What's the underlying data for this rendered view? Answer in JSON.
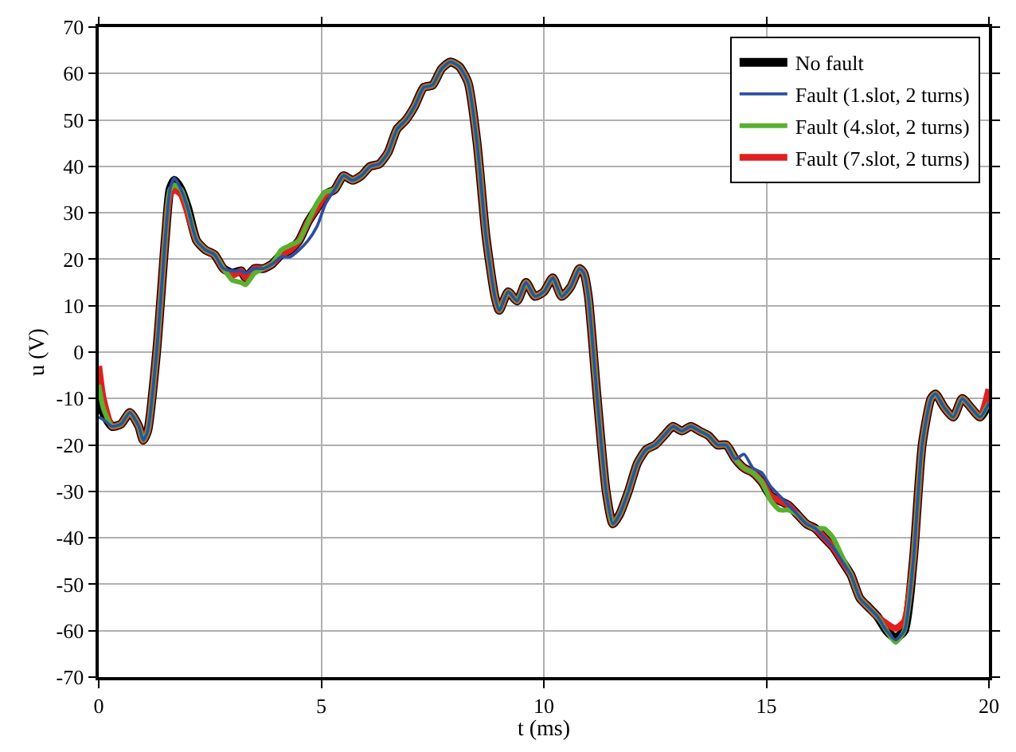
{
  "chart_data": {
    "type": "line",
    "xlabel": "t (ms)",
    "ylabel": "u (V)",
    "x": [
      0,
      0.1,
      0.3,
      0.5,
      0.7,
      0.9,
      1.0,
      1.1,
      1.3,
      1.5,
      1.6,
      1.7,
      1.85,
      2.0,
      2.2,
      2.4,
      2.6,
      2.8,
      3.0,
      3.2,
      3.3,
      3.5,
      3.7,
      3.9,
      4.1,
      4.3,
      4.5,
      4.7,
      4.9,
      5.1,
      5.3,
      5.5,
      5.7,
      5.9,
      6.1,
      6.3,
      6.5,
      6.7,
      6.9,
      7.1,
      7.3,
      7.5,
      7.7,
      7.9,
      8.1,
      8.3,
      8.5,
      8.7,
      8.9,
      9.0,
      9.2,
      9.4,
      9.6,
      9.8,
      10.0,
      10.2,
      10.4,
      10.6,
      10.8,
      10.9,
      11.0,
      11.2,
      11.4,
      11.55,
      11.7,
      11.9,
      12.1,
      12.3,
      12.5,
      12.7,
      12.9,
      13.1,
      13.3,
      13.5,
      13.7,
      13.9,
      14.1,
      14.3,
      14.5,
      14.7,
      14.9,
      15.1,
      15.3,
      15.5,
      15.7,
      15.9,
      16.1,
      16.3,
      16.5,
      16.7,
      16.9,
      17.1,
      17.3,
      17.5,
      17.7,
      17.9,
      18.1,
      18.3,
      18.5,
      18.7,
      18.8,
      19.0,
      19.2,
      19.4,
      19.6,
      19.8,
      20
    ],
    "series": [
      {
        "name": "No fault",
        "color": "#000000",
        "values": [
          -10,
          -13,
          -16,
          -15.5,
          -13,
          -16,
          -19,
          -17,
          0,
          25,
          35,
          37,
          35,
          31,
          24,
          22,
          21,
          18,
          17,
          17.5,
          16,
          18,
          18,
          19,
          21,
          22,
          24,
          28,
          31,
          34,
          35,
          38,
          37,
          38,
          40,
          40.5,
          43,
          48,
          50,
          53,
          57,
          57.5,
          61,
          62.5,
          61.5,
          58,
          45,
          25,
          12,
          9,
          13,
          11,
          15,
          12,
          13,
          16,
          12,
          14,
          18,
          17,
          12,
          -10,
          -30,
          -37,
          -35,
          -30,
          -24,
          -21,
          -20,
          -18,
          -16,
          -17,
          -16,
          -17,
          -18,
          -20,
          -20,
          -23,
          -25,
          -26,
          -28,
          -31,
          -32,
          -33,
          -35,
          -37,
          -38,
          -40,
          -42,
          -45,
          -48,
          -53,
          -55,
          -57,
          -60,
          -61.5,
          -60,
          -45,
          -20,
          -10,
          -9,
          -12,
          -14,
          -10,
          -12,
          -14,
          -11
        ]
      },
      {
        "name": "Fault (1.slot, 2 turns)",
        "color": "#2e4fa0",
        "values": [
          -14,
          -14.5,
          -16,
          -15.5,
          -13,
          -16,
          -19,
          -17,
          0,
          25,
          35,
          37.5,
          35,
          31,
          24,
          22,
          21,
          18,
          17.5,
          17.5,
          17,
          18,
          18,
          19,
          20.5,
          20.5,
          22,
          24,
          27,
          32,
          35,
          38,
          37,
          38,
          40,
          40.5,
          43,
          48,
          50,
          53,
          57,
          57.5,
          61,
          62.5,
          61.5,
          58,
          45,
          25,
          12,
          9,
          13,
          11,
          15,
          12,
          13,
          16,
          12,
          14,
          18,
          17,
          12,
          -10,
          -30,
          -37,
          -35,
          -30,
          -24,
          -21,
          -20,
          -18,
          -16,
          -17,
          -16,
          -17,
          -18,
          -20,
          -20,
          -23,
          -22,
          -25,
          -26,
          -29,
          -31,
          -33,
          -35,
          -37,
          -38,
          -40,
          -42,
          -45,
          -48,
          -53,
          -55,
          -57,
          -60,
          -62,
          -60,
          -45,
          -20,
          -10,
          -9,
          -12,
          -14,
          -10,
          -12,
          -14,
          -11
        ]
      },
      {
        "name": "Fault (4.slot, 2 turns)",
        "color": "#5ab030",
        "values": [
          -7,
          -12,
          -16,
          -15.5,
          -13,
          -16,
          -19,
          -17,
          0,
          25,
          35,
          36,
          35,
          31,
          24,
          22,
          21,
          18,
          15.5,
          15,
          14.5,
          17,
          18,
          19,
          22,
          23,
          24,
          28,
          32,
          34.5,
          35,
          38,
          37,
          38,
          40,
          40.5,
          43,
          48,
          50,
          53,
          57,
          57.5,
          61,
          62.5,
          61.5,
          58,
          45,
          25,
          12,
          9,
          13,
          11,
          15,
          12,
          13,
          16,
          12,
          14,
          18,
          17,
          12,
          -10,
          -30,
          -37,
          -35,
          -30,
          -24,
          -21,
          -20,
          -18,
          -16,
          -17,
          -16,
          -17,
          -18,
          -20,
          -20,
          -23,
          -25,
          -26,
          -28,
          -32,
          -34,
          -34,
          -35,
          -37,
          -38,
          -38,
          -40,
          -44,
          -48,
          -53,
          -55,
          -57,
          -60,
          -62.5,
          -60,
          -45,
          -20,
          -10,
          -9,
          -12,
          -14,
          -10,
          -12,
          -14,
          -11
        ]
      },
      {
        "name": "Fault (7.slot, 2 turns)",
        "color": "#e02020",
        "values": [
          -3,
          -10,
          -16,
          -15.5,
          -13,
          -16,
          -19,
          -17,
          0,
          25,
          34,
          35,
          34,
          30,
          24,
          22,
          21,
          18,
          16.5,
          17.5,
          16,
          18,
          18,
          19,
          21,
          22,
          24,
          28,
          31,
          34,
          35,
          38,
          37,
          38,
          40,
          40.5,
          43,
          48,
          50,
          53,
          57,
          57.5,
          61,
          62.5,
          61.5,
          58,
          45,
          25,
          12,
          9,
          13,
          11,
          15,
          12,
          13,
          16,
          12,
          14,
          18,
          17,
          12,
          -10,
          -30,
          -37,
          -35,
          -30,
          -24,
          -21,
          -20,
          -18,
          -16,
          -17,
          -16,
          -17,
          -18,
          -20,
          -20,
          -23,
          -25,
          -26,
          -28,
          -31,
          -32,
          -33,
          -35,
          -37,
          -38,
          -40,
          -42,
          -45,
          -48,
          -53,
          -55,
          -57,
          -58.5,
          -59.5,
          -58,
          -45,
          -20,
          -10,
          -9,
          -12,
          -14,
          -10,
          -12,
          -14,
          -8
        ]
      }
    ],
    "xlim": [
      0,
      20
    ],
    "xticks": [
      0,
      5,
      10,
      15,
      20
    ],
    "ylim": [
      -70,
      70
    ],
    "yticks": [
      -70,
      -60,
      -50,
      -40,
      -30,
      -20,
      -10,
      0,
      10,
      20,
      30,
      40,
      50,
      60,
      70
    ],
    "grid": true,
    "legend": "top right",
    "marker": "none",
    "line_style": "solid"
  }
}
